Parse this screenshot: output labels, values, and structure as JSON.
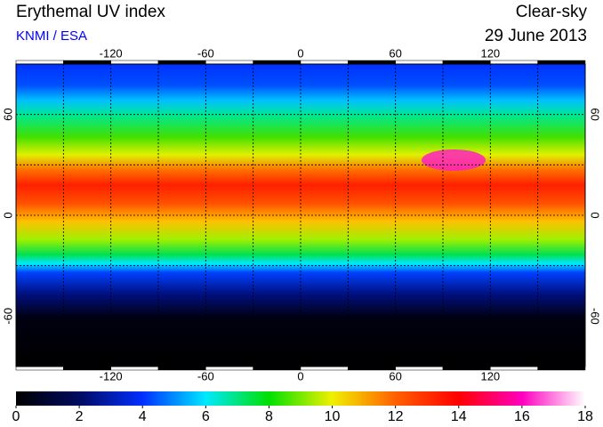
{
  "map": {
    "title": "Erythemal UV index",
    "source": "KNMI / ESA",
    "condition": "Clear-sky",
    "date": "29 June 2013",
    "lon_lim": [
      -180,
      180
    ],
    "lat_lim": [
      -90,
      90
    ],
    "lon_ticks": [
      -120,
      -60,
      0,
      60,
      120
    ],
    "lat_ticks": [
      60,
      0,
      -60
    ],
    "grid_spacing": 30,
    "colorbar": {
      "lim": [
        0,
        18
      ],
      "ticks": [
        0,
        2,
        4,
        6,
        8,
        10,
        12,
        14,
        16,
        18
      ],
      "colors": [
        "#000000",
        "#000a60",
        "#0030ff",
        "#00e8ff",
        "#00e000",
        "#f0f000",
        "#ff6000",
        "#ff0000",
        "#ff00c0",
        "#ffffff"
      ]
    }
  }
}
